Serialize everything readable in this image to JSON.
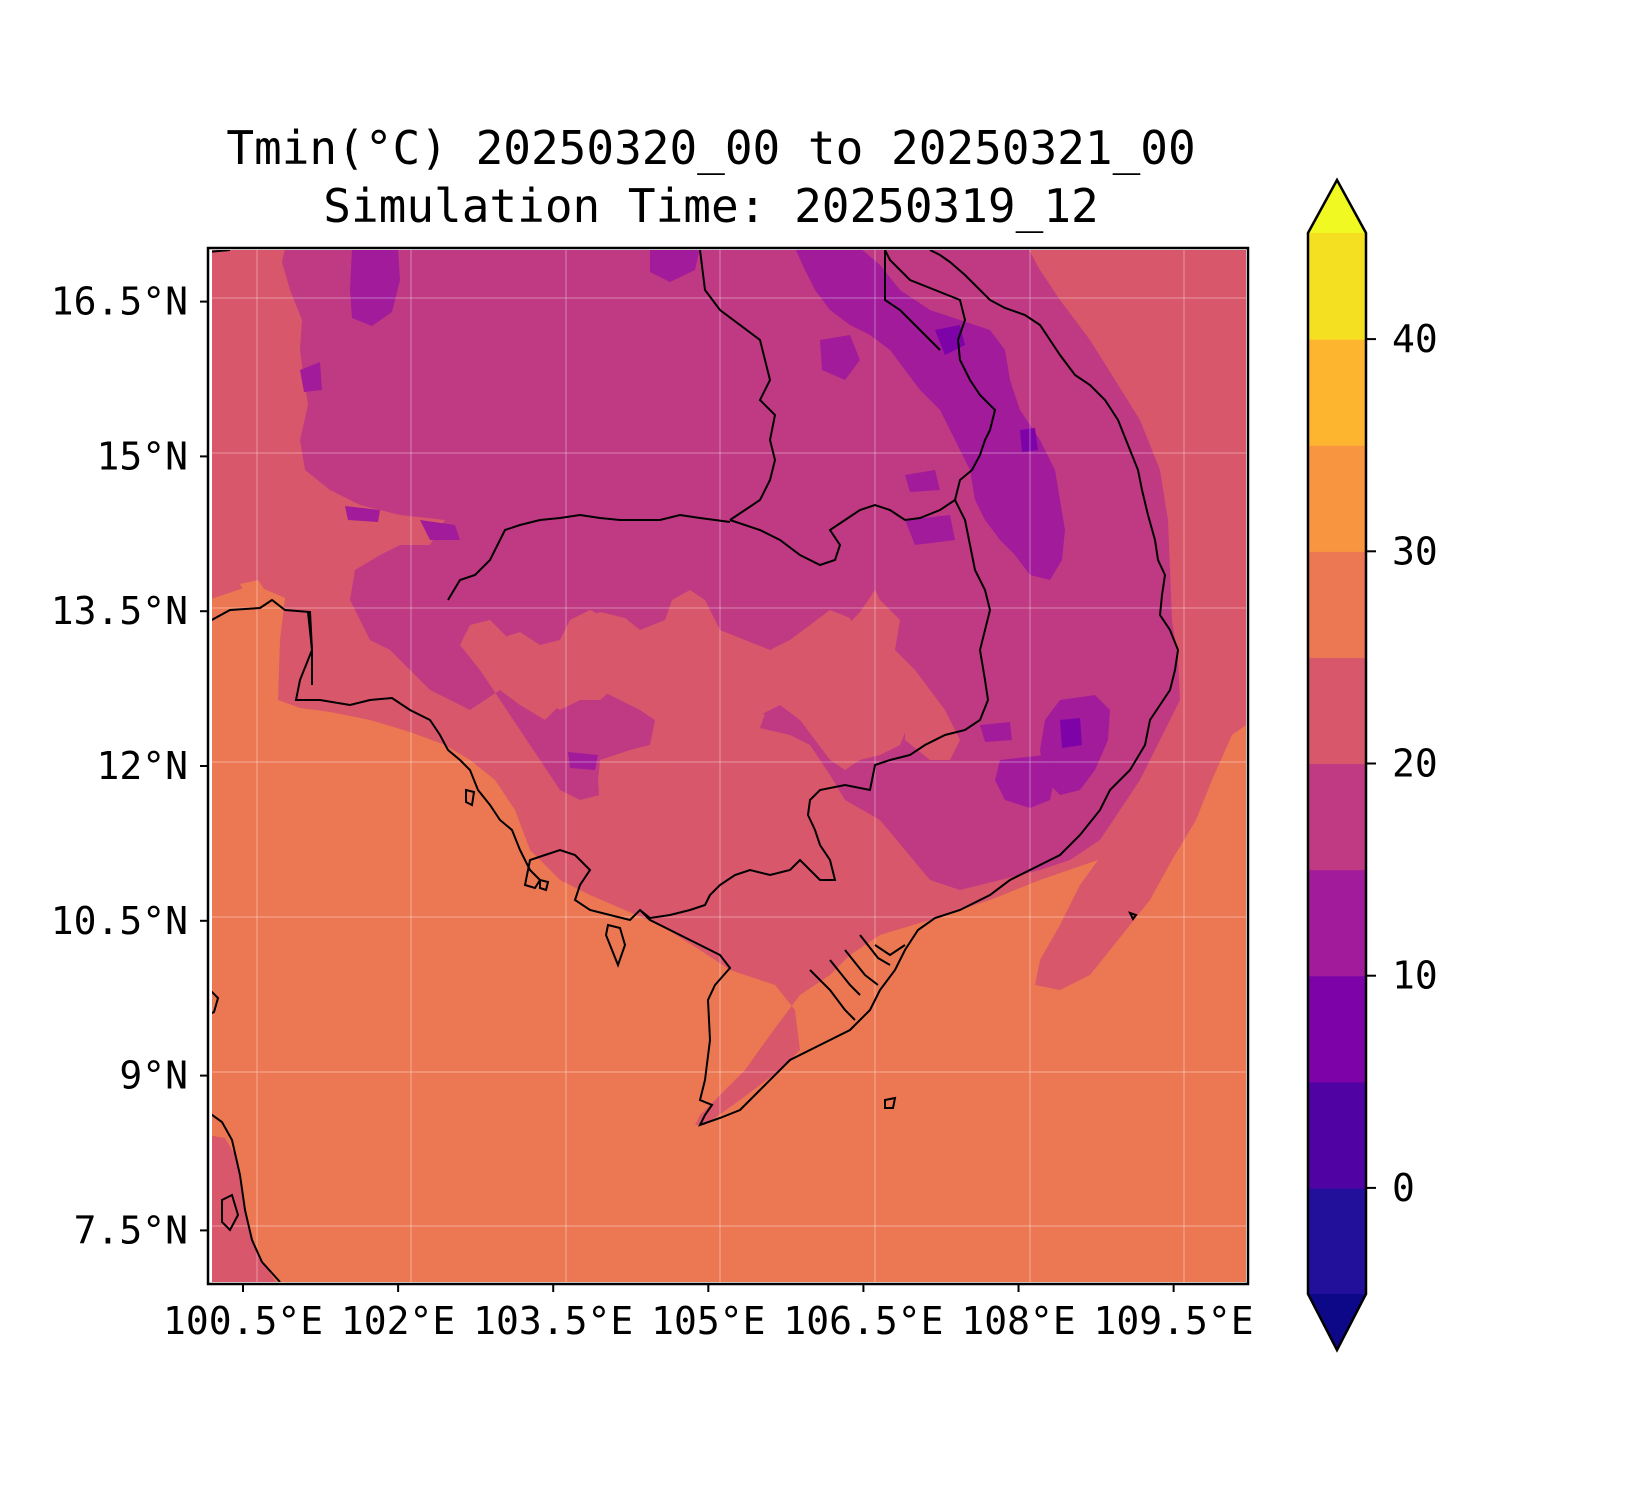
{
  "title": {
    "line1": "Tmin(°C) 20250320_00 to 20250321_00",
    "line2": "Simulation Time: 20250319_12"
  },
  "map": {
    "projection": "PlateCarree",
    "lon_range": [
      100.2,
      110.2
    ],
    "lat_range": [
      7.0,
      17.0
    ],
    "gridlines": true,
    "lon_ticks": [
      {
        "value": 100.5,
        "label": "100.5°E"
      },
      {
        "value": 102.0,
        "label": "102°E"
      },
      {
        "value": 103.5,
        "label": "103.5°E"
      },
      {
        "value": 105.0,
        "label": "105°E"
      },
      {
        "value": 106.5,
        "label": "106.5°E"
      },
      {
        "value": 108.0,
        "label": "108°E"
      },
      {
        "value": 109.5,
        "label": "109.5°E"
      }
    ],
    "lat_ticks": [
      {
        "value": 16.5,
        "label": "16.5°N"
      },
      {
        "value": 15.0,
        "label": "15°N"
      },
      {
        "value": 13.5,
        "label": "13.5°N"
      },
      {
        "value": 12.0,
        "label": "12°N"
      },
      {
        "value": 10.5,
        "label": "10.5°N"
      },
      {
        "value": 9.0,
        "label": "9°N"
      },
      {
        "value": 7.5,
        "label": "7.5°N"
      }
    ]
  },
  "colorbar": {
    "cmap": "plasma",
    "extend": "both",
    "range": [
      -5,
      45
    ],
    "levels": [
      -5,
      0,
      5,
      10,
      15,
      20,
      25,
      30,
      35,
      40,
      45
    ],
    "colors": [
      "#23109a",
      "#5102a3",
      "#7d03a8",
      "#a11b9b",
      "#c03a83",
      "#d8576b",
      "#ec7853",
      "#f89540",
      "#fdb42f",
      "#f4e021"
    ],
    "under_color": "#0d0887",
    "over_color": "#f0f921",
    "ticks": [
      {
        "value": 0,
        "label": "0"
      },
      {
        "value": 10,
        "label": "10"
      },
      {
        "value": 20,
        "label": "20"
      },
      {
        "value": 30,
        "label": "30"
      },
      {
        "value": 40,
        "label": "40"
      }
    ]
  }
}
